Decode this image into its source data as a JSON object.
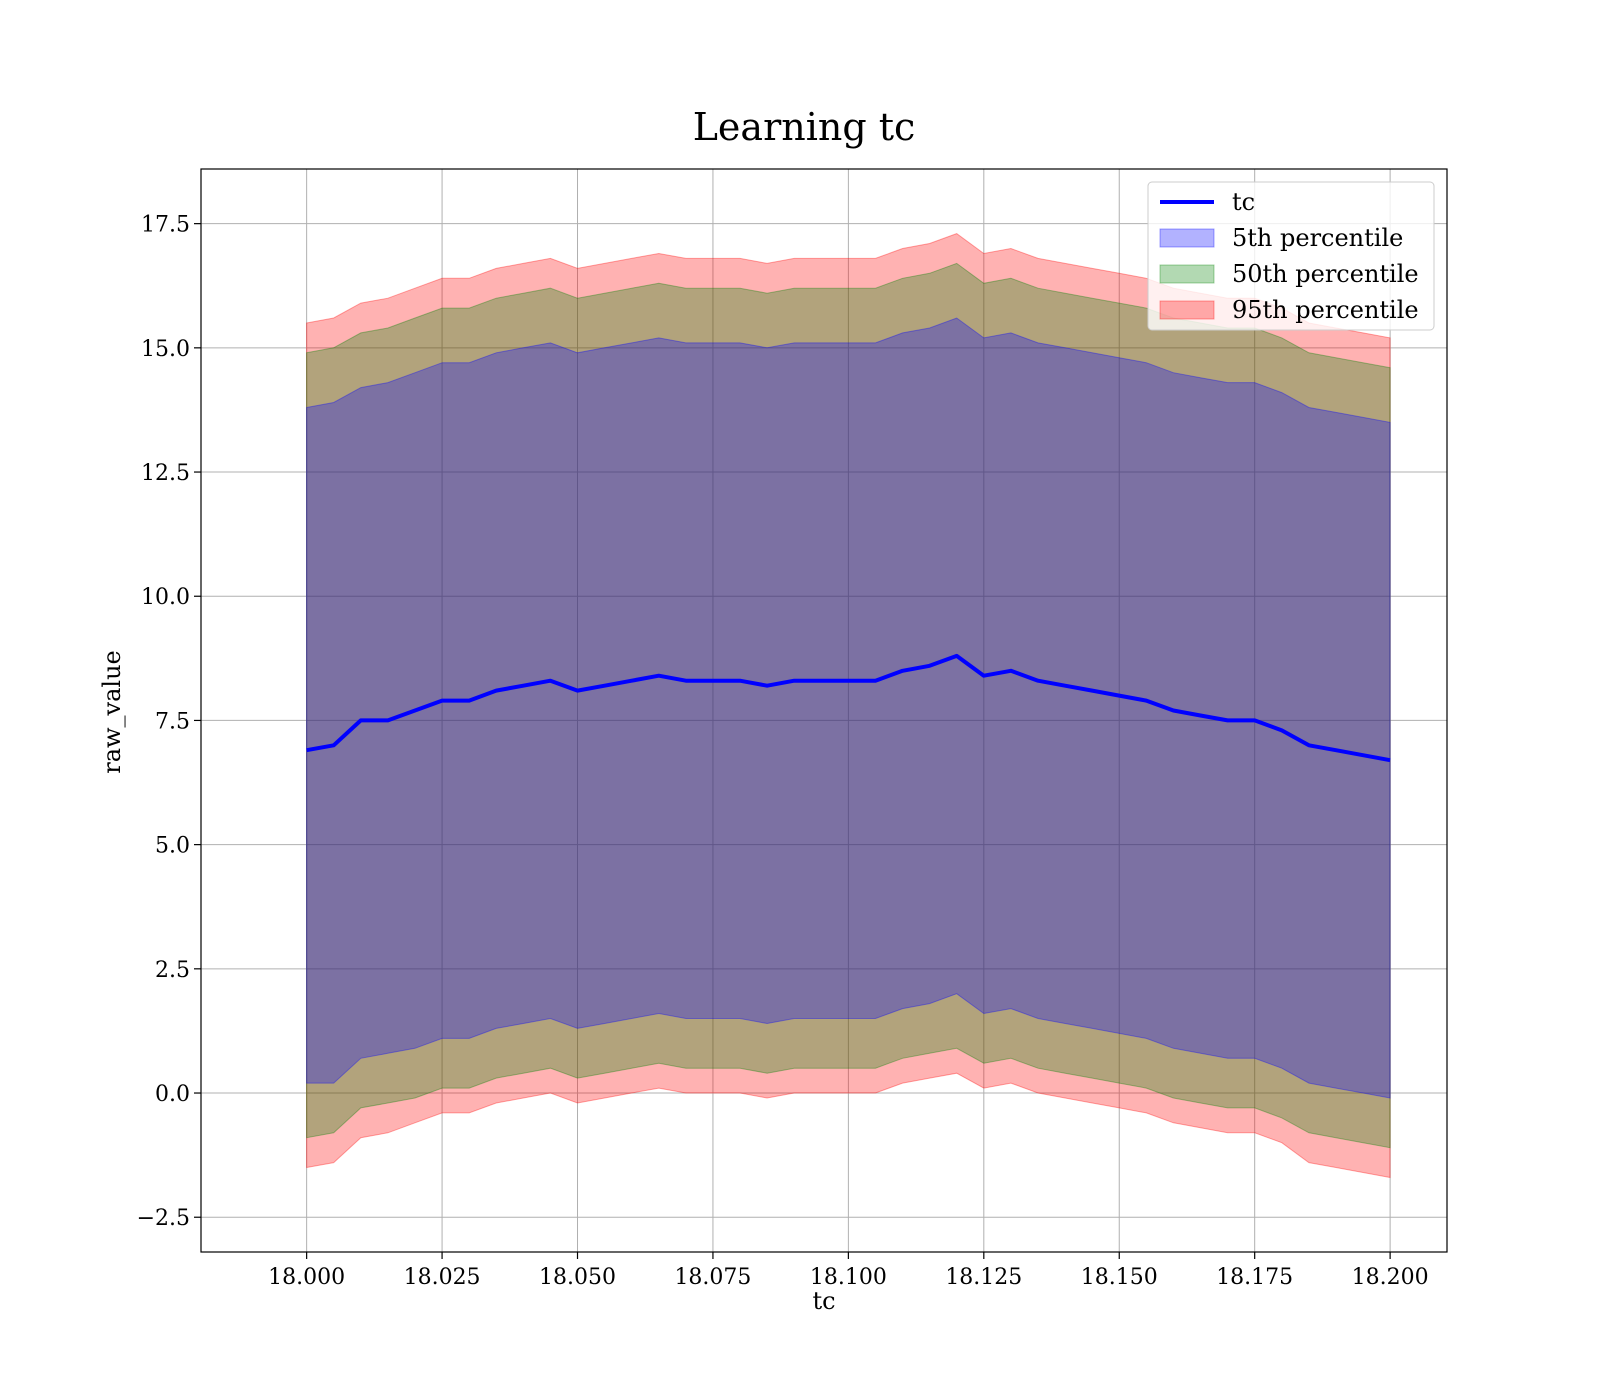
{
  "chart_data": {
    "type": "area",
    "title": "Learning tc",
    "xlabel": "tc",
    "ylabel": "raw_value",
    "xlim": [
      17.9805,
      18.2105
    ],
    "ylim": [
      -3.2,
      18.6
    ],
    "grid": true,
    "legend_position": "top-right",
    "x_ticks": [
      "18.000",
      "18.025",
      "18.050",
      "18.075",
      "18.100",
      "18.125",
      "18.150",
      "18.175",
      "18.200"
    ],
    "y_ticks": [
      "−2.5",
      "0.0",
      "2.5",
      "5.0",
      "7.5",
      "10.0",
      "12.5",
      "15.0",
      "17.5"
    ],
    "x_tick_values": [
      18.0,
      18.025,
      18.05,
      18.075,
      18.1,
      18.125,
      18.15,
      18.175,
      18.2
    ],
    "y_tick_values": [
      -2.5,
      0.0,
      2.5,
      5.0,
      7.5,
      10.0,
      12.5,
      15.0,
      17.5
    ],
    "x": [
      18.0,
      18.005,
      18.01,
      18.015,
      18.02,
      18.025,
      18.03,
      18.035,
      18.04,
      18.045,
      18.05,
      18.055,
      18.06,
      18.065,
      18.07,
      18.075,
      18.08,
      18.085,
      18.09,
      18.095,
      18.1,
      18.105,
      18.11,
      18.115,
      18.12,
      18.125,
      18.13,
      18.135,
      18.14,
      18.145,
      18.15,
      18.155,
      18.16,
      18.165,
      18.17,
      18.175,
      18.18,
      18.185,
      18.19,
      18.195,
      18.2
    ],
    "series": [
      {
        "name": "tc",
        "kind": "line",
        "color": "#0000ff",
        "values": [
          6.9,
          7.0,
          7.5,
          7.5,
          7.7,
          7.9,
          7.9,
          8.1,
          8.2,
          8.3,
          8.1,
          8.2,
          8.3,
          8.4,
          8.3,
          8.3,
          8.3,
          8.2,
          8.3,
          8.3,
          8.3,
          8.3,
          8.5,
          8.6,
          8.8,
          8.4,
          8.5,
          8.3,
          8.2,
          8.1,
          8.0,
          7.9,
          7.7,
          7.6,
          7.5,
          7.5,
          7.3,
          7.0,
          6.9,
          6.8,
          6.7
        ]
      },
      {
        "name": "5th percentile",
        "kind": "band",
        "color": "#0000ff",
        "lower": [
          0.2,
          0.2,
          0.7,
          0.8,
          0.9,
          1.1,
          1.1,
          1.3,
          1.4,
          1.5,
          1.3,
          1.4,
          1.5,
          1.6,
          1.5,
          1.5,
          1.5,
          1.4,
          1.5,
          1.5,
          1.5,
          1.5,
          1.7,
          1.8,
          2.0,
          1.6,
          1.7,
          1.5,
          1.4,
          1.3,
          1.2,
          1.1,
          0.9,
          0.8,
          0.7,
          0.7,
          0.5,
          0.2,
          0.1,
          0.0,
          -0.1
        ],
        "upper": [
          13.8,
          13.9,
          14.2,
          14.3,
          14.5,
          14.7,
          14.7,
          14.9,
          15.0,
          15.1,
          14.9,
          15.0,
          15.1,
          15.2,
          15.1,
          15.1,
          15.1,
          15.0,
          15.1,
          15.1,
          15.1,
          15.1,
          15.3,
          15.4,
          15.6,
          15.2,
          15.3,
          15.1,
          15.0,
          14.9,
          14.8,
          14.7,
          14.5,
          14.4,
          14.3,
          14.3,
          14.1,
          13.8,
          13.7,
          13.6,
          13.5
        ]
      },
      {
        "name": "50th percentile",
        "kind": "band",
        "color": "#008000",
        "lower": [
          -0.9,
          -0.8,
          -0.3,
          -0.2,
          -0.1,
          0.1,
          0.1,
          0.3,
          0.4,
          0.5,
          0.3,
          0.4,
          0.5,
          0.6,
          0.5,
          0.5,
          0.5,
          0.4,
          0.5,
          0.5,
          0.5,
          0.5,
          0.7,
          0.8,
          0.9,
          0.6,
          0.7,
          0.5,
          0.4,
          0.3,
          0.2,
          0.1,
          -0.1,
          -0.2,
          -0.3,
          -0.3,
          -0.5,
          -0.8,
          -0.9,
          -1.0,
          -1.1
        ],
        "upper": [
          14.9,
          15.0,
          15.3,
          15.4,
          15.6,
          15.8,
          15.8,
          16.0,
          16.1,
          16.2,
          16.0,
          16.1,
          16.2,
          16.3,
          16.2,
          16.2,
          16.2,
          16.1,
          16.2,
          16.2,
          16.2,
          16.2,
          16.4,
          16.5,
          16.7,
          16.3,
          16.4,
          16.2,
          16.1,
          16.0,
          15.9,
          15.8,
          15.6,
          15.5,
          15.4,
          15.4,
          15.2,
          14.9,
          14.8,
          14.7,
          14.6
        ]
      },
      {
        "name": "95th percentile",
        "kind": "band",
        "color": "#ff0000",
        "lower": [
          -1.5,
          -1.4,
          -0.9,
          -0.8,
          -0.6,
          -0.4,
          -0.4,
          -0.2,
          -0.1,
          0.0,
          -0.2,
          -0.1,
          0.0,
          0.1,
          0.0,
          0.0,
          0.0,
          -0.1,
          0.0,
          0.0,
          0.0,
          0.0,
          0.2,
          0.3,
          0.4,
          0.1,
          0.2,
          0.0,
          -0.1,
          -0.2,
          -0.3,
          -0.4,
          -0.6,
          -0.7,
          -0.8,
          -0.8,
          -1.0,
          -1.4,
          -1.5,
          -1.6,
          -1.7
        ],
        "upper": [
          15.5,
          15.6,
          15.9,
          16.0,
          16.2,
          16.4,
          16.4,
          16.6,
          16.7,
          16.8,
          16.6,
          16.7,
          16.8,
          16.9,
          16.8,
          16.8,
          16.8,
          16.7,
          16.8,
          16.8,
          16.8,
          16.8,
          17.0,
          17.1,
          17.3,
          16.9,
          17.0,
          16.8,
          16.7,
          16.6,
          16.5,
          16.4,
          16.2,
          16.1,
          16.0,
          16.0,
          15.8,
          15.5,
          15.4,
          15.3,
          15.2
        ]
      }
    ]
  }
}
